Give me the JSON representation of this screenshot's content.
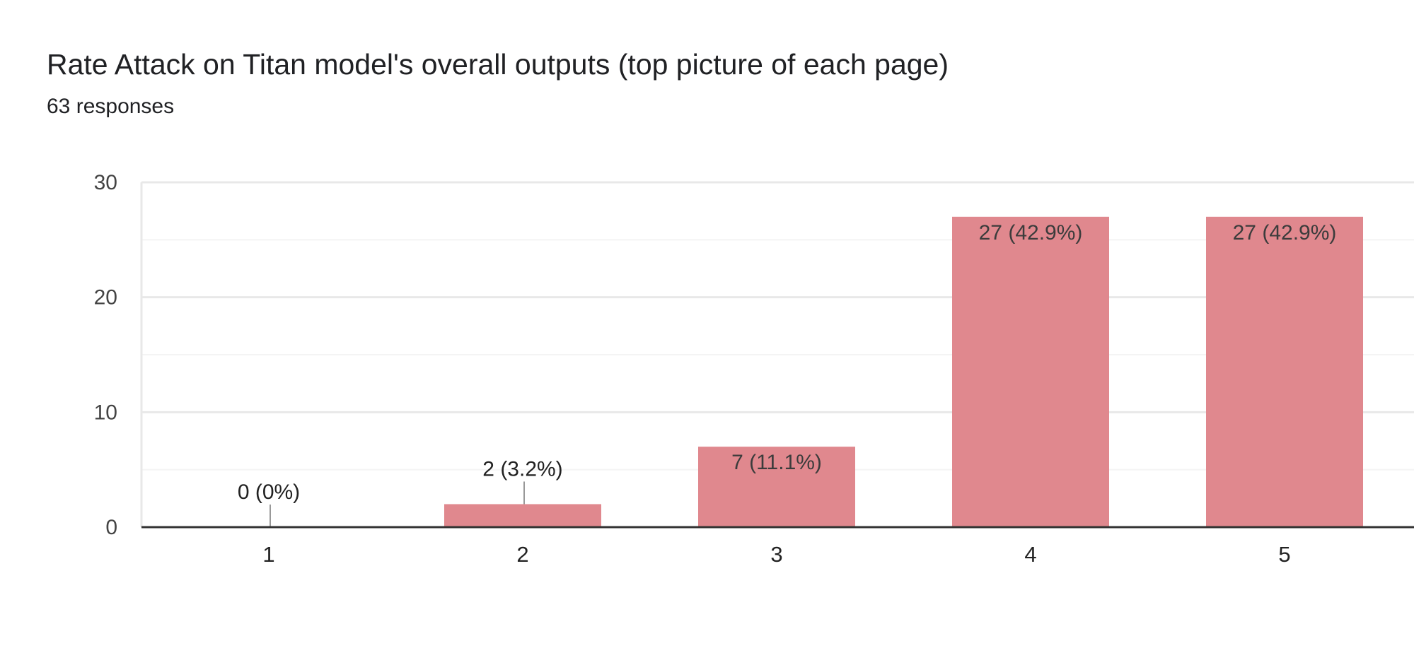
{
  "header": {
    "title": "Rate Attack on Titan model's overall outputs (top picture of each page)",
    "responses": "63 responses"
  },
  "colors": {
    "bar": "#e0888e",
    "grid_major": "#e8e8e8",
    "grid_minor": "#f4f4f4",
    "axis": "#333333",
    "tick_text": "#444444",
    "label_text": "#222222",
    "leader": "#999999"
  },
  "chart_data": {
    "type": "bar",
    "categories": [
      "1",
      "2",
      "3",
      "4",
      "5"
    ],
    "values": [
      0,
      2,
      7,
      27,
      27
    ],
    "data_labels": [
      "0 (0%)",
      "2 (3.2%)",
      "7 (11.1%)",
      "27 (42.9%)",
      "27 (42.9%)"
    ],
    "ylim": [
      0,
      30
    ],
    "yticks": [
      "0",
      "10",
      "20",
      "30"
    ],
    "grid": true,
    "legend": "none"
  }
}
